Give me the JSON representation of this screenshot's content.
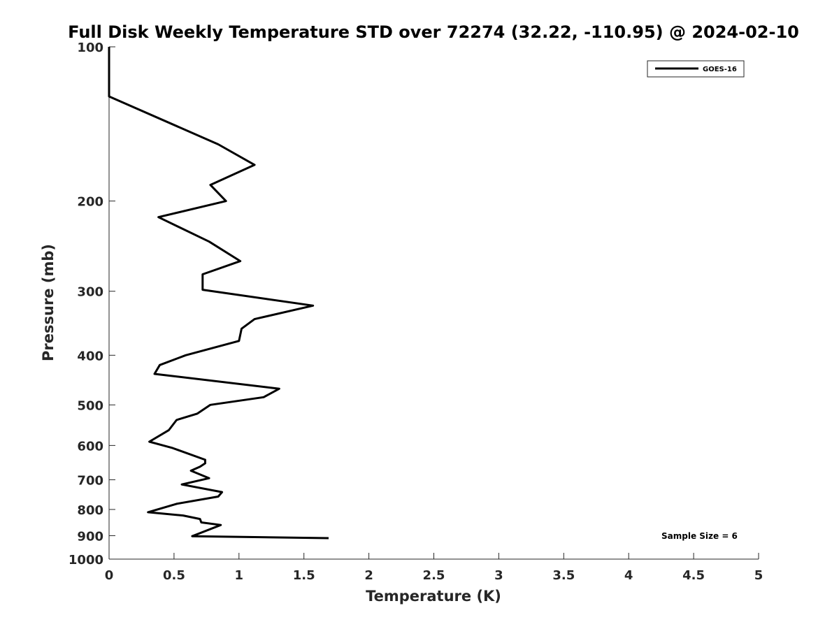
{
  "chart_data": {
    "type": "line",
    "title": "Full Disk Weekly Temperature STD over 72274 (32.22, -110.95) @ 2024-02-10",
    "xlabel": "Temperature (K)",
    "ylabel": "Pressure (mb)",
    "xlim": [
      0,
      5
    ],
    "ylim": [
      1000,
      100
    ],
    "yscale": "log",
    "y_reversed": true,
    "grid": false,
    "legend_position": "top-right",
    "xticks": [
      "0",
      "0.5",
      "1",
      "1.5",
      "2",
      "2.5",
      "3",
      "3.5",
      "4",
      "4.5",
      "5"
    ],
    "yticks": [
      "100",
      "200",
      "300",
      "400",
      "500",
      "600",
      "700",
      "800",
      "900",
      "1000"
    ],
    "annotation": "Sample Size = 6",
    "series": [
      {
        "name": "GOES-16",
        "color": "#000000",
        "x": [
          0.0,
          0.0,
          0.84,
          1.12,
          0.78,
          0.9,
          0.38,
          0.77,
          1.01,
          0.72,
          0.72,
          1.57,
          1.12,
          1.02,
          1.0,
          0.59,
          0.39,
          0.35,
          1.31,
          1.19,
          0.78,
          0.68,
          0.52,
          0.46,
          0.31,
          0.49,
          0.74,
          0.74,
          0.7,
          0.63,
          0.77,
          0.56,
          0.87,
          0.84,
          0.52,
          0.3,
          0.57,
          0.7,
          0.71,
          0.86,
          0.64,
          1.69
        ],
        "y": [
          100,
          125,
          155,
          170,
          186,
          200,
          215,
          240,
          262,
          278,
          298,
          320,
          340,
          355,
          375,
          400,
          418,
          435,
          465,
          483,
          500,
          520,
          535,
          560,
          590,
          607,
          640,
          650,
          660,
          672,
          695,
          715,
          740,
          755,
          780,
          810,
          822,
          835,
          848,
          858,
          902,
          910
        ]
      }
    ]
  }
}
